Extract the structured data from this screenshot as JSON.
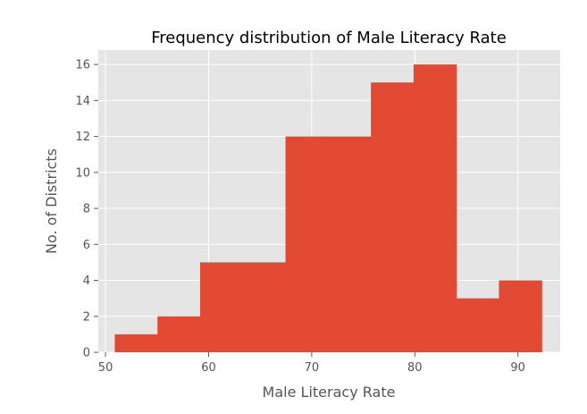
{
  "chart_data": {
    "type": "bar",
    "title": "Frequency distribution of Male Literacy Rate",
    "xlabel": "Male Literacy Rate",
    "ylabel": "No. of Districts",
    "xlim": [
      49.3,
      94.1
    ],
    "ylim": [
      0,
      16.8
    ],
    "xticks": [
      50,
      60,
      70,
      80,
      90
    ],
    "yticks": [
      0,
      2,
      4,
      6,
      8,
      10,
      12,
      14,
      16
    ],
    "grid": true,
    "legend": "none",
    "bin_edges": [
      50.9,
      55.04,
      59.18,
      63.32,
      67.46,
      71.6,
      75.74,
      79.88,
      84.02,
      88.16,
      92.3
    ],
    "values": [
      1,
      2,
      5,
      5,
      12,
      12,
      15,
      16,
      3,
      4
    ],
    "colors": {
      "bar": "#E24A33",
      "plot_background": "#E5E5E5",
      "grid": "#FFFFFF"
    }
  }
}
